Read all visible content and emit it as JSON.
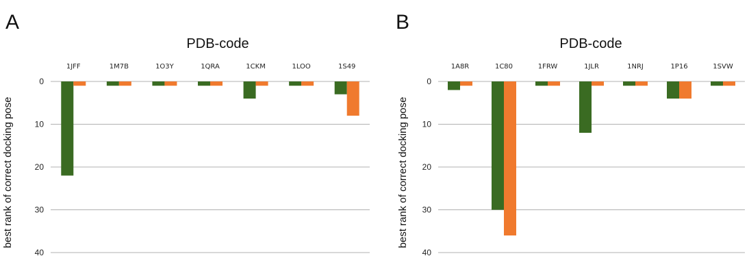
{
  "colors": {
    "series1": "#3a6b22",
    "series2": "#f07a2e"
  },
  "chart_data": [
    {
      "panel": "A",
      "type": "bar",
      "title": "PDB-code",
      "ylabel": "best rank of correct docking pose",
      "xlabel": "",
      "ylim": [
        0,
        40
      ],
      "y_ticks": [
        0,
        10,
        20,
        30,
        40
      ],
      "y_inverted": true,
      "grid": true,
      "categories": [
        "1JFF",
        "1M7B",
        "1O3Y",
        "1QRA",
        "1CKM",
        "1LOO",
        "1S49"
      ],
      "series": [
        {
          "values": [
            22,
            1,
            1,
            1,
            4,
            1,
            3
          ]
        },
        {
          "values": [
            1,
            1,
            1,
            1,
            1,
            1,
            8
          ]
        }
      ]
    },
    {
      "panel": "B",
      "type": "bar",
      "title": "PDB-code",
      "ylabel": "best rank of correct docking pose",
      "xlabel": "",
      "ylim": [
        0,
        40
      ],
      "y_ticks": [
        0,
        10,
        20,
        30,
        40
      ],
      "y_inverted": true,
      "grid": true,
      "categories": [
        "1A8R",
        "1C80",
        "1FRW",
        "1JLR",
        "1NRJ",
        "1P16",
        "1SVW"
      ],
      "series": [
        {
          "values": [
            2,
            30,
            1,
            12,
            1,
            4,
            1
          ]
        },
        {
          "values": [
            1,
            36,
            1,
            1,
            1,
            4,
            1
          ]
        }
      ]
    }
  ]
}
